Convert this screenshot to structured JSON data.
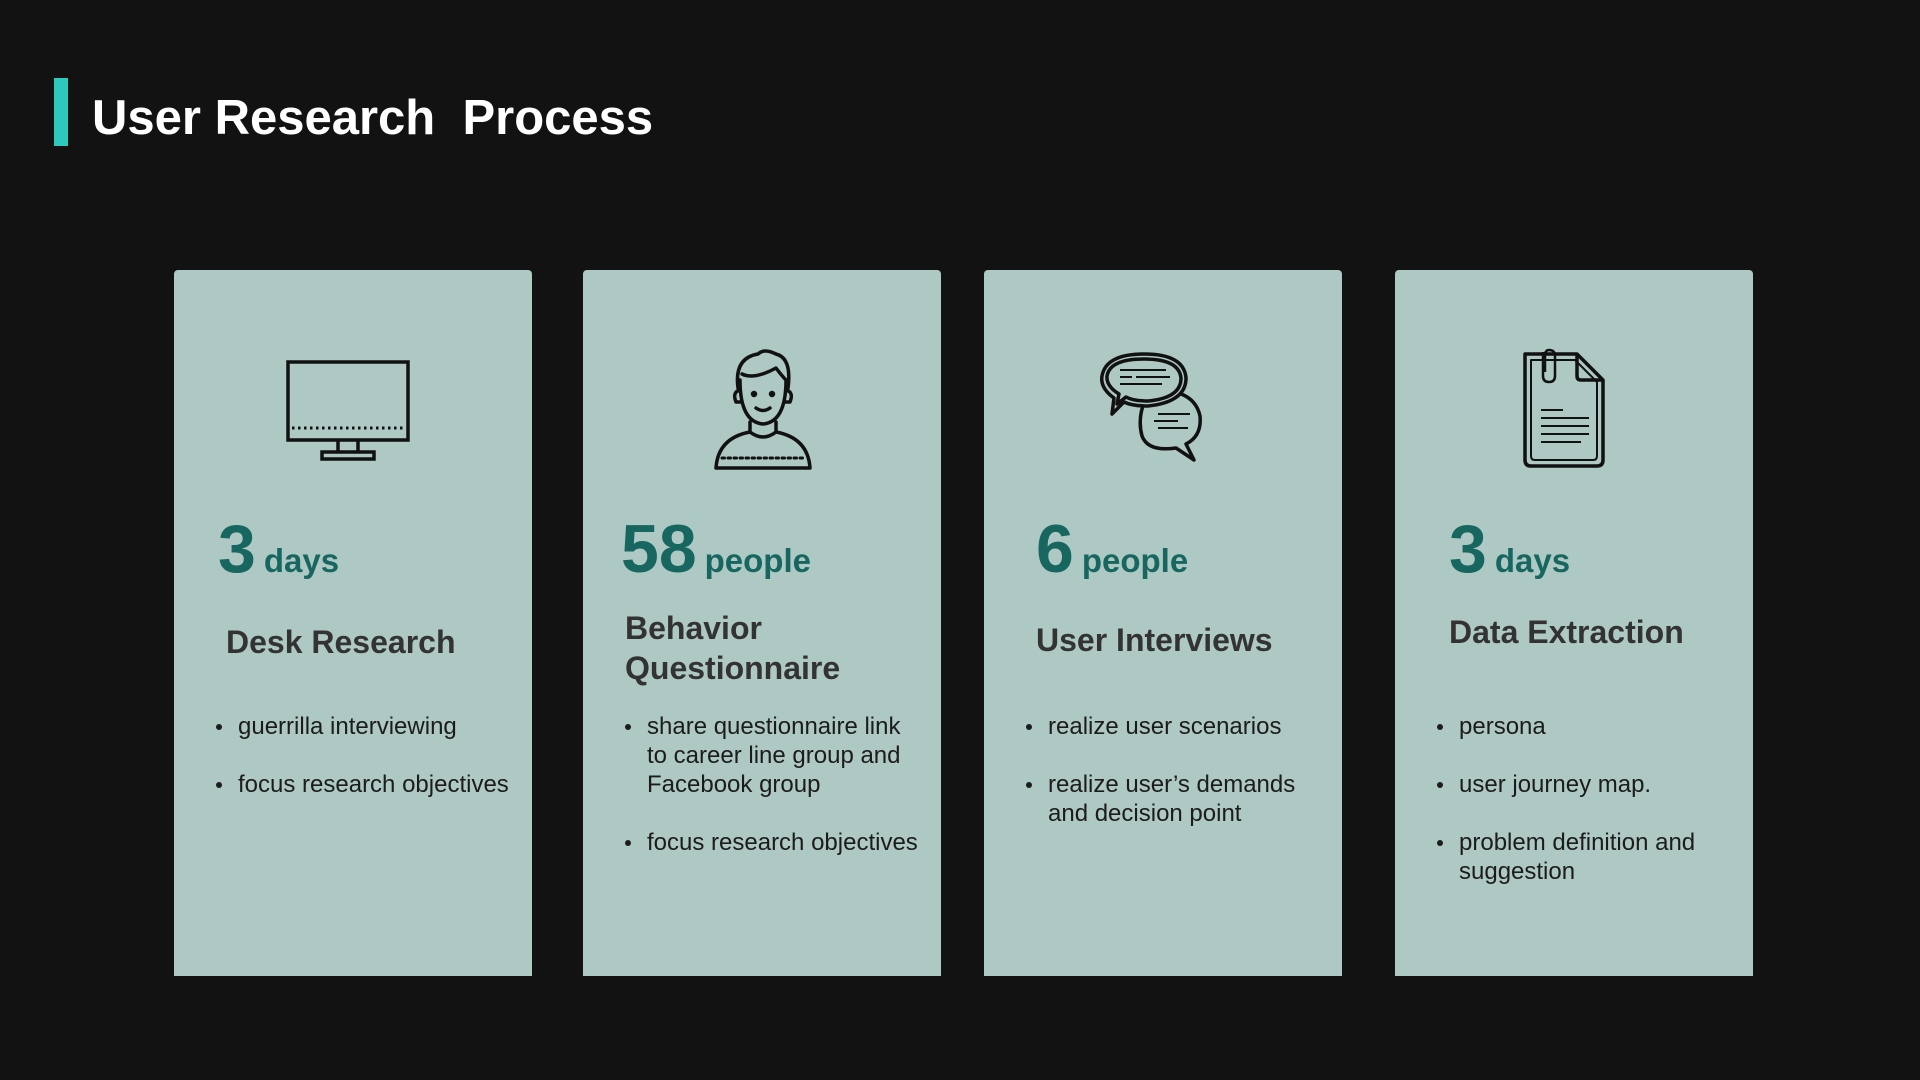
{
  "title": "User Research  Process",
  "colors": {
    "background": "#121212",
    "accent": "#2ec9bd",
    "card": "#aec8c4",
    "stat": "#176760",
    "card_title": "#333333",
    "bullet_text": "#1c1c1c"
  },
  "cards": [
    {
      "icon": "monitor-icon",
      "number": "3",
      "unit": "days",
      "title": "Desk Research",
      "bullets": [
        "guerrilla interviewing",
        "focus research objectives"
      ]
    },
    {
      "icon": "person-icon",
      "number": "58",
      "unit": "people",
      "title": "Behavior Questionnaire",
      "bullets": [
        "share questionnaire link to career line group and Facebook group",
        "focus research objectives"
      ]
    },
    {
      "icon": "chat-bubbles-icon",
      "number": "6",
      "unit": "people",
      "title": "User Interviews",
      "bullets": [
        "realize user scenarios",
        "realize user’s demands and decision point"
      ]
    },
    {
      "icon": "document-icon",
      "number": "3",
      "unit": "days",
      "title": "Data Extraction",
      "bullets": [
        "persona",
        "user journey map.",
        "problem definition and suggestion"
      ]
    }
  ]
}
